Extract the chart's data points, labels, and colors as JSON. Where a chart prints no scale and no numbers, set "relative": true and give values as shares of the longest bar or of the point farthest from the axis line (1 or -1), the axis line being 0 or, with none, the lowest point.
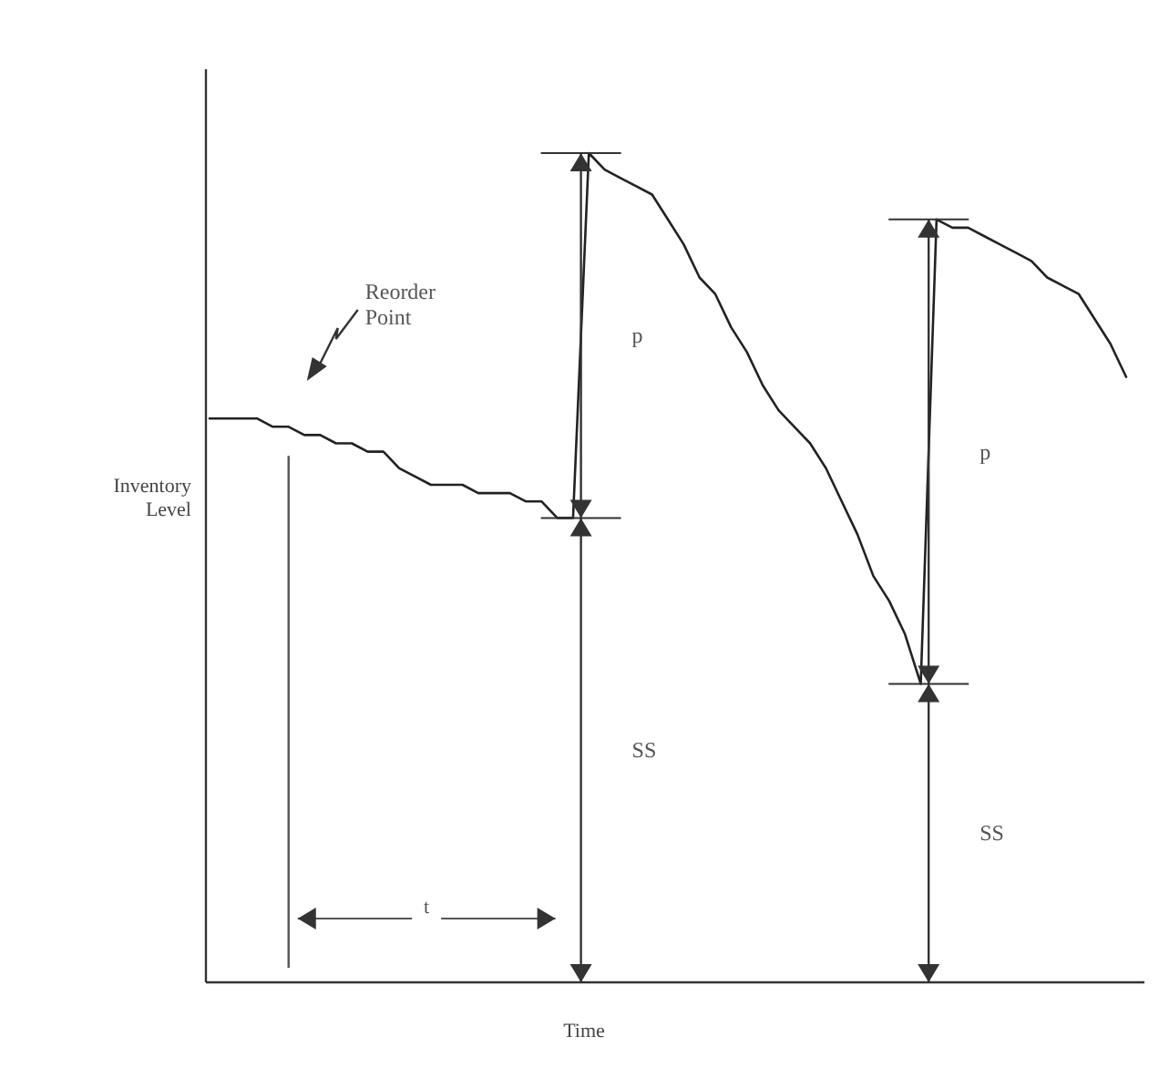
{
  "chart_data": {
    "type": "line",
    "relative": true,
    "xlabel": "Time",
    "ylabel": "Inventory Level",
    "line_style": "solid",
    "categories": [
      null,
      null,
      null,
      null,
      null,
      null,
      null,
      null,
      null,
      null,
      null,
      null,
      null,
      null,
      null,
      null,
      null,
      null,
      null,
      null,
      null,
      null,
      null,
      null,
      null,
      null,
      null,
      null,
      null,
      null,
      null,
      null,
      null,
      null,
      null,
      null,
      null,
      null,
      null,
      null,
      null,
      null,
      null,
      null,
      null,
      null,
      null,
      null,
      null,
      null,
      null,
      null,
      null,
      null,
      null,
      null,
      null,
      null,
      null
    ],
    "series": [
      {
        "color": "#222222",
        "values": [
          0.68,
          0.68,
          0.68,
          0.68,
          0.67,
          0.67,
          0.66,
          0.66,
          0.65,
          0.65,
          0.64,
          0.64,
          0.62,
          0.61,
          0.6,
          0.6,
          0.6,
          0.59,
          0.59,
          0.59,
          0.58,
          0.58,
          0.56,
          0.56,
          1.0,
          0.98,
          0.97,
          0.96,
          0.95,
          0.92,
          0.89,
          0.85,
          0.83,
          0.79,
          0.76,
          0.72,
          0.69,
          0.67,
          0.65,
          0.62,
          0.58,
          0.54,
          0.49,
          0.46,
          0.42,
          0.36,
          0.92,
          0.91,
          0.91,
          0.9,
          0.89,
          0.88,
          0.87,
          0.85,
          0.84,
          0.83,
          0.8,
          0.77,
          0.73
        ]
      }
    ],
    "annotations": [
      "Reorder Point",
      "p",
      "SS",
      "p",
      "SS",
      "t"
    ]
  }
}
